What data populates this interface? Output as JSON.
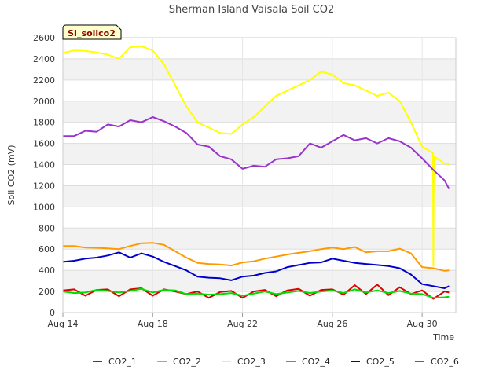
{
  "chart_data": {
    "type": "line",
    "title": "Sherman Island Vaisala Soil CO2",
    "badge": "SI_soilco2",
    "xlabel": "Time",
    "ylabel": "Soil CO2 (mV)",
    "xlim": [
      "Aug 14",
      "Aug 31.5"
    ],
    "ylim": [
      0,
      2600
    ],
    "y_ticks": [
      0,
      200,
      400,
      600,
      800,
      1000,
      1200,
      1400,
      1600,
      1800,
      2000,
      2200,
      2400,
      2600
    ],
    "x_ticks": [
      {
        "label": "Aug 14",
        "day": 14
      },
      {
        "label": "Aug 18",
        "day": 18
      },
      {
        "label": "Aug 22",
        "day": 22
      },
      {
        "label": "Aug 26",
        "day": 26
      },
      {
        "label": "Aug 30",
        "day": 30
      }
    ],
    "grid": true,
    "background_bands": true,
    "legend_position": "bottom",
    "series": [
      {
        "name": "CO2_1",
        "color": "#dd0000",
        "points": [
          [
            14.0,
            210
          ],
          [
            14.5,
            220
          ],
          [
            15.0,
            160
          ],
          [
            15.5,
            215
          ],
          [
            16.0,
            220
          ],
          [
            16.5,
            155
          ],
          [
            17.0,
            220
          ],
          [
            17.5,
            230
          ],
          [
            18.0,
            160
          ],
          [
            18.5,
            220
          ],
          [
            19.0,
            200
          ],
          [
            19.5,
            175
          ],
          [
            20.0,
            200
          ],
          [
            20.5,
            140
          ],
          [
            21.0,
            195
          ],
          [
            21.5,
            205
          ],
          [
            22.0,
            140
          ],
          [
            22.5,
            200
          ],
          [
            23.0,
            215
          ],
          [
            23.5,
            155
          ],
          [
            24.0,
            210
          ],
          [
            24.5,
            225
          ],
          [
            25.0,
            160
          ],
          [
            25.5,
            215
          ],
          [
            26.0,
            220
          ],
          [
            26.5,
            170
          ],
          [
            27.0,
            260
          ],
          [
            27.5,
            175
          ],
          [
            28.0,
            265
          ],
          [
            28.5,
            165
          ],
          [
            29.0,
            240
          ],
          [
            29.5,
            175
          ],
          [
            30.0,
            210
          ],
          [
            30.5,
            130
          ],
          [
            31.0,
            200
          ],
          [
            31.2,
            190
          ]
        ]
      },
      {
        "name": "CO2_2",
        "color": "#ff9900",
        "points": [
          [
            14.0,
            630
          ],
          [
            14.5,
            630
          ],
          [
            15.0,
            615
          ],
          [
            15.5,
            612
          ],
          [
            16.0,
            608
          ],
          [
            16.5,
            600
          ],
          [
            17.0,
            630
          ],
          [
            17.5,
            655
          ],
          [
            18.0,
            660
          ],
          [
            18.5,
            640
          ],
          [
            19.0,
            580
          ],
          [
            19.5,
            520
          ],
          [
            20.0,
            470
          ],
          [
            20.5,
            460
          ],
          [
            21.0,
            455
          ],
          [
            21.5,
            445
          ],
          [
            22.0,
            475
          ],
          [
            22.5,
            485
          ],
          [
            23.0,
            510
          ],
          [
            23.5,
            530
          ],
          [
            24.0,
            550
          ],
          [
            24.5,
            565
          ],
          [
            25.0,
            580
          ],
          [
            25.5,
            600
          ],
          [
            26.0,
            615
          ],
          [
            26.5,
            600
          ],
          [
            27.0,
            620
          ],
          [
            27.5,
            570
          ],
          [
            28.0,
            580
          ],
          [
            28.5,
            580
          ],
          [
            29.0,
            605
          ],
          [
            29.5,
            560
          ],
          [
            30.0,
            430
          ],
          [
            30.5,
            420
          ],
          [
            31.0,
            395
          ],
          [
            31.2,
            400
          ]
        ]
      },
      {
        "name": "CO2_3",
        "color": "#ffff00",
        "points": [
          [
            14.0,
            2455
          ],
          [
            14.5,
            2480
          ],
          [
            15.0,
            2475
          ],
          [
            15.5,
            2460
          ],
          [
            16.0,
            2440
          ],
          [
            16.5,
            2400
          ],
          [
            17.0,
            2510
          ],
          [
            17.5,
            2520
          ],
          [
            18.0,
            2480
          ],
          [
            18.5,
            2350
          ],
          [
            19.0,
            2150
          ],
          [
            19.5,
            1950
          ],
          [
            20.0,
            1800
          ],
          [
            20.5,
            1750
          ],
          [
            21.0,
            1700
          ],
          [
            21.5,
            1690
          ],
          [
            22.0,
            1780
          ],
          [
            22.5,
            1850
          ],
          [
            23.0,
            1950
          ],
          [
            23.5,
            2050
          ],
          [
            24.0,
            2100
          ],
          [
            24.5,
            2150
          ],
          [
            25.0,
            2200
          ],
          [
            25.5,
            2280
          ],
          [
            26.0,
            2250
          ],
          [
            26.5,
            2170
          ],
          [
            27.0,
            2150
          ],
          [
            27.5,
            2100
          ],
          [
            28.0,
            2050
          ],
          [
            28.5,
            2080
          ],
          [
            29.0,
            2000
          ],
          [
            29.5,
            1800
          ],
          [
            30.0,
            1570
          ],
          [
            30.48,
            1510
          ],
          [
            30.5,
            440
          ],
          [
            30.52,
            1480
          ],
          [
            31.0,
            1410
          ],
          [
            31.2,
            1405
          ]
        ]
      },
      {
        "name": "CO2_4",
        "color": "#00dd00",
        "points": [
          [
            14.0,
            200
          ],
          [
            14.5,
            185
          ],
          [
            15.0,
            190
          ],
          [
            15.5,
            215
          ],
          [
            16.0,
            205
          ],
          [
            16.5,
            190
          ],
          [
            17.0,
            205
          ],
          [
            17.5,
            225
          ],
          [
            18.0,
            190
          ],
          [
            18.5,
            215
          ],
          [
            19.0,
            210
          ],
          [
            19.5,
            175
          ],
          [
            20.0,
            180
          ],
          [
            20.5,
            170
          ],
          [
            21.0,
            175
          ],
          [
            21.5,
            185
          ],
          [
            22.0,
            160
          ],
          [
            22.5,
            180
          ],
          [
            23.0,
            200
          ],
          [
            23.5,
            175
          ],
          [
            24.0,
            190
          ],
          [
            24.5,
            205
          ],
          [
            25.0,
            185
          ],
          [
            25.5,
            200
          ],
          [
            26.0,
            210
          ],
          [
            26.5,
            185
          ],
          [
            27.0,
            220
          ],
          [
            27.5,
            190
          ],
          [
            28.0,
            210
          ],
          [
            28.5,
            185
          ],
          [
            29.0,
            205
          ],
          [
            29.5,
            180
          ],
          [
            30.0,
            175
          ],
          [
            30.5,
            140
          ],
          [
            31.0,
            145
          ],
          [
            31.2,
            150
          ]
        ]
      },
      {
        "name": "CO2_5",
        "color": "#0000cc",
        "points": [
          [
            14.0,
            480
          ],
          [
            14.5,
            490
          ],
          [
            15.0,
            510
          ],
          [
            15.5,
            520
          ],
          [
            16.0,
            540
          ],
          [
            16.5,
            570
          ],
          [
            17.0,
            520
          ],
          [
            17.5,
            560
          ],
          [
            18.0,
            530
          ],
          [
            18.5,
            480
          ],
          [
            19.0,
            440
          ],
          [
            19.5,
            400
          ],
          [
            20.0,
            340
          ],
          [
            20.5,
            330
          ],
          [
            21.0,
            325
          ],
          [
            21.5,
            305
          ],
          [
            22.0,
            340
          ],
          [
            22.5,
            350
          ],
          [
            23.0,
            375
          ],
          [
            23.5,
            390
          ],
          [
            24.0,
            430
          ],
          [
            24.5,
            450
          ],
          [
            25.0,
            470
          ],
          [
            25.5,
            475
          ],
          [
            26.0,
            510
          ],
          [
            26.5,
            490
          ],
          [
            27.0,
            470
          ],
          [
            27.5,
            460
          ],
          [
            28.0,
            450
          ],
          [
            28.5,
            440
          ],
          [
            29.0,
            420
          ],
          [
            29.5,
            360
          ],
          [
            30.0,
            270
          ],
          [
            30.5,
            250
          ],
          [
            31.0,
            230
          ],
          [
            31.2,
            250
          ]
        ]
      },
      {
        "name": "CO2_6",
        "color": "#9933cc",
        "points": [
          [
            14.0,
            1670
          ],
          [
            14.5,
            1670
          ],
          [
            15.0,
            1720
          ],
          [
            15.5,
            1710
          ],
          [
            16.0,
            1780
          ],
          [
            16.5,
            1760
          ],
          [
            17.0,
            1820
          ],
          [
            17.5,
            1800
          ],
          [
            18.0,
            1850
          ],
          [
            18.5,
            1810
          ],
          [
            19.0,
            1760
          ],
          [
            19.5,
            1700
          ],
          [
            20.0,
            1590
          ],
          [
            20.5,
            1570
          ],
          [
            21.0,
            1480
          ],
          [
            21.5,
            1450
          ],
          [
            22.0,
            1360
          ],
          [
            22.5,
            1390
          ],
          [
            23.0,
            1380
          ],
          [
            23.5,
            1450
          ],
          [
            24.0,
            1460
          ],
          [
            24.5,
            1480
          ],
          [
            25.0,
            1600
          ],
          [
            25.5,
            1560
          ],
          [
            26.0,
            1620
          ],
          [
            26.5,
            1680
          ],
          [
            27.0,
            1630
          ],
          [
            27.5,
            1650
          ],
          [
            28.0,
            1600
          ],
          [
            28.5,
            1650
          ],
          [
            29.0,
            1620
          ],
          [
            29.5,
            1560
          ],
          [
            30.0,
            1460
          ],
          [
            30.5,
            1350
          ],
          [
            31.0,
            1250
          ],
          [
            31.2,
            1170
          ]
        ]
      }
    ]
  }
}
